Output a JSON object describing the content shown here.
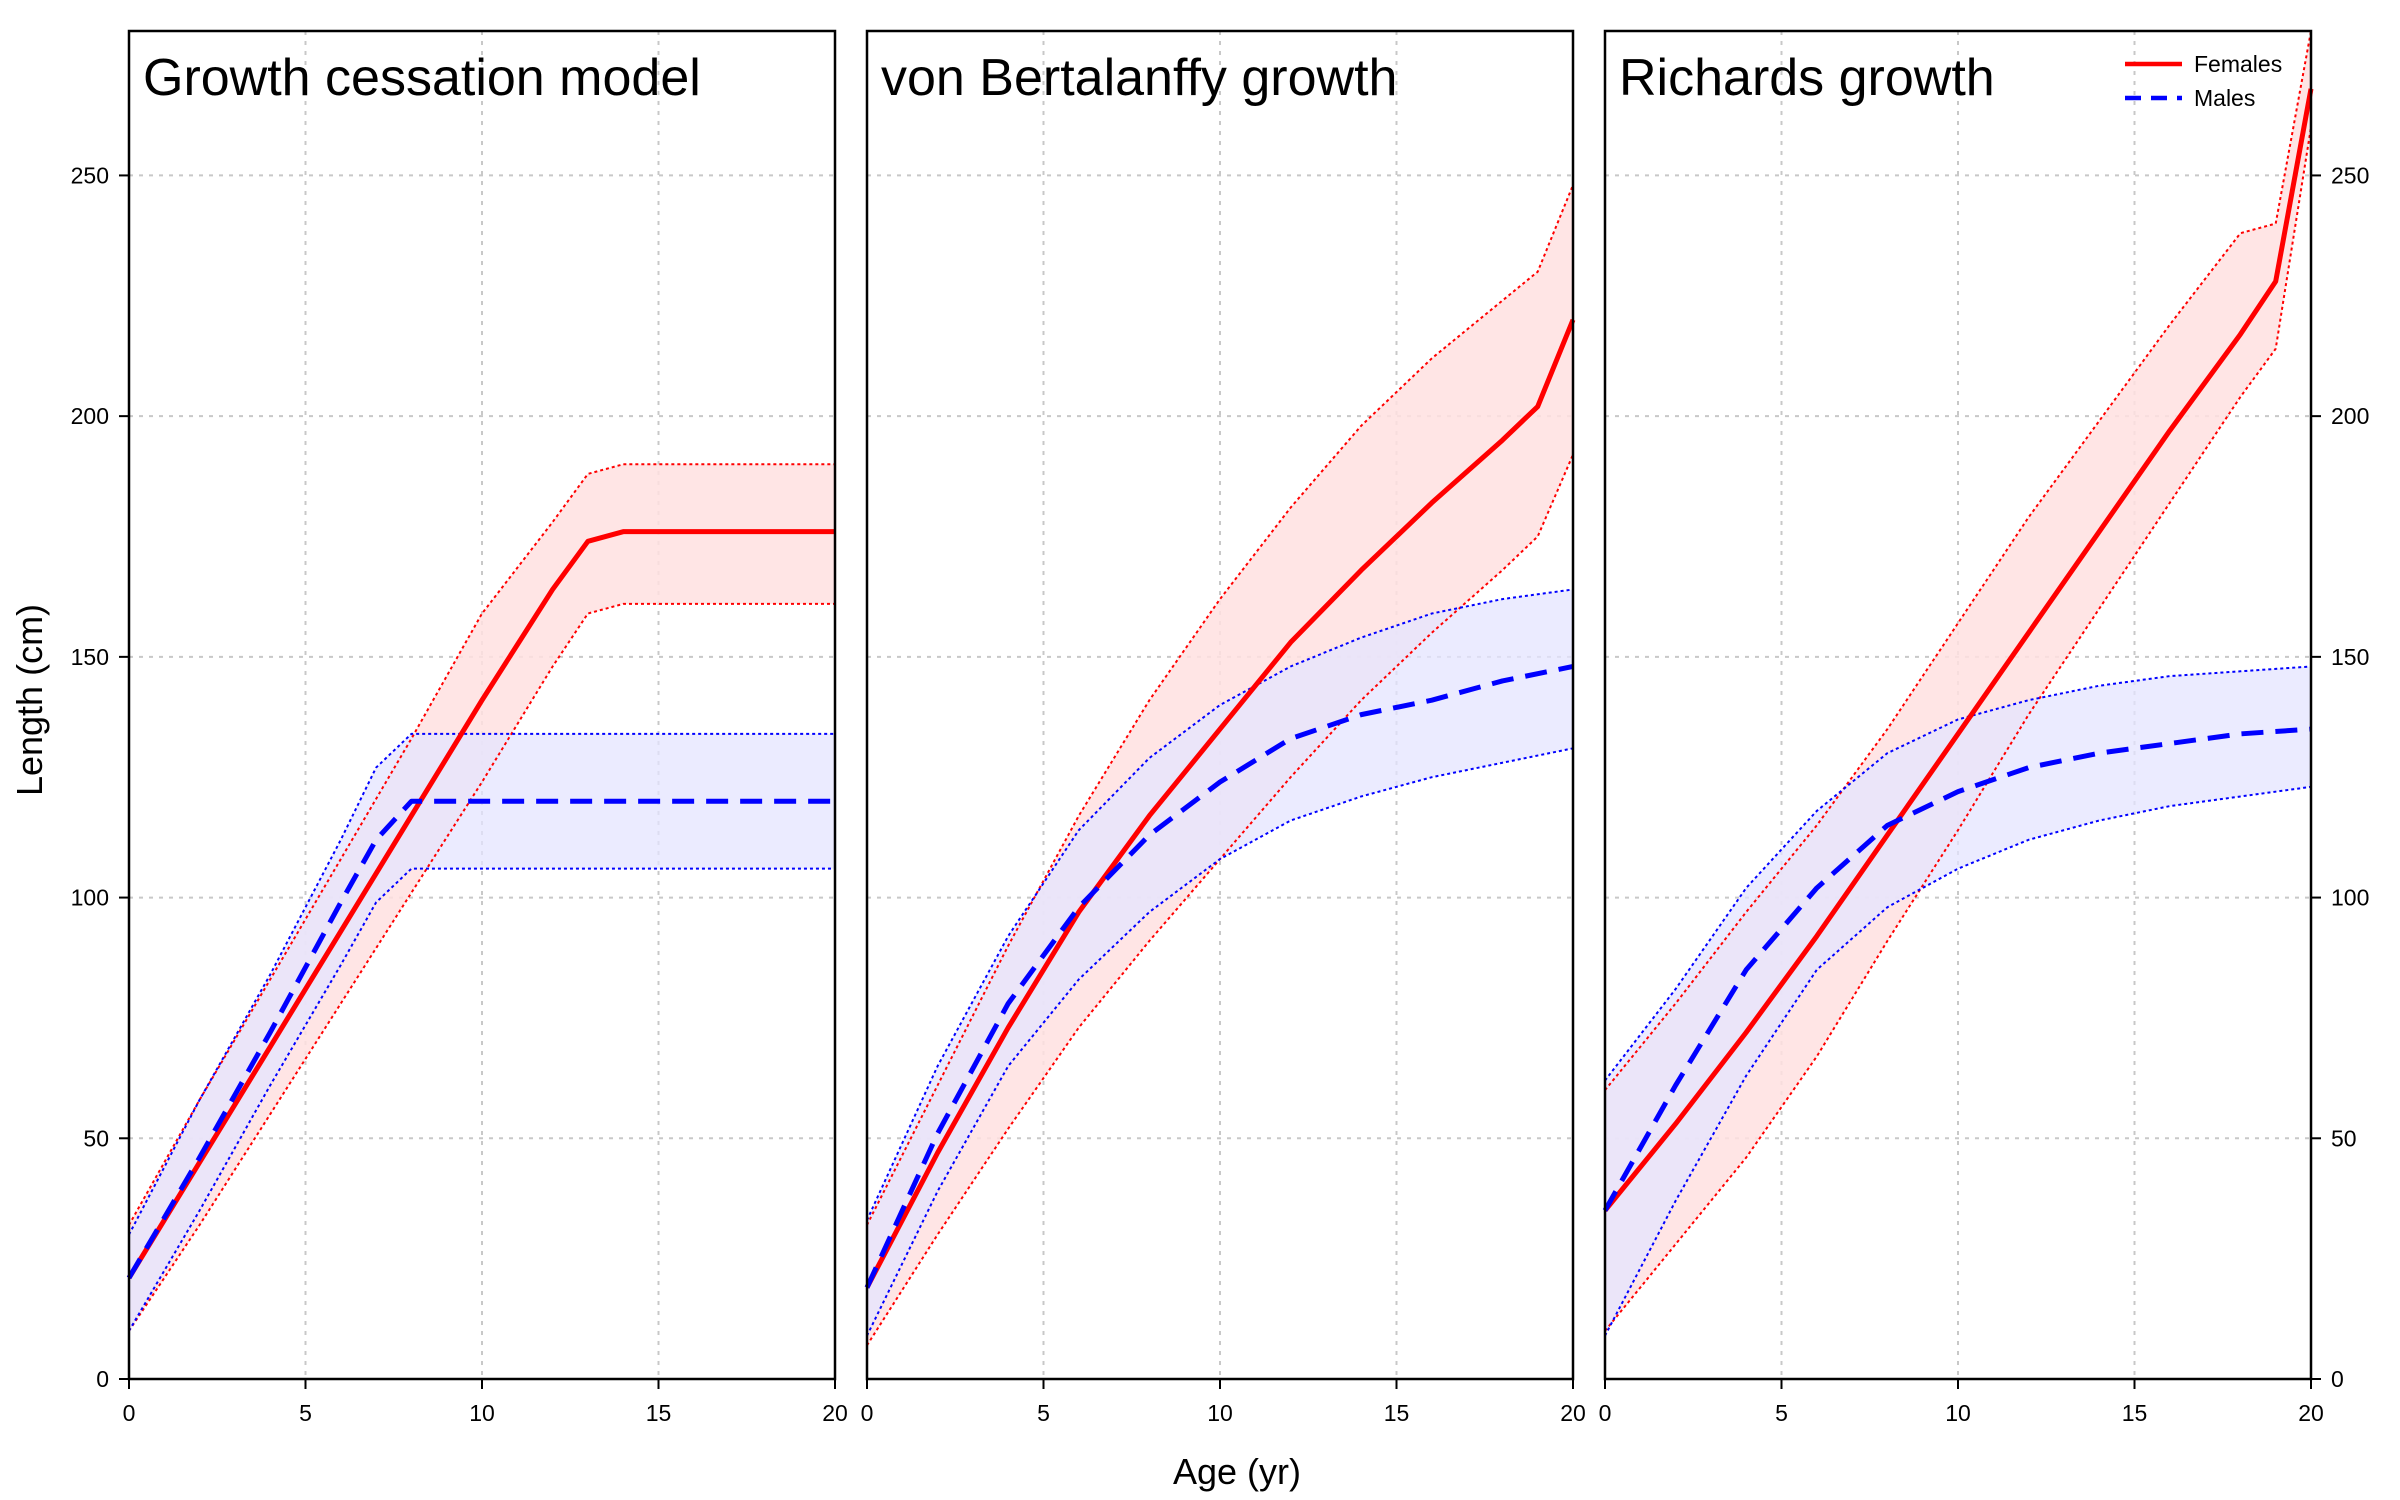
{
  "colors": {
    "females_line": "#ff0000",
    "females_band": "#ffe1e1",
    "males_line": "#0000ff",
    "males_band": "#e4e4ff",
    "grid": "#c8c8c8"
  },
  "chart_data": {
    "type": "line",
    "xlabel": "Age (yr)",
    "ylabel": "Length (cm)",
    "xlim": [
      0,
      20
    ],
    "ylim": [
      0,
      280
    ],
    "x_ticks": [
      "0",
      "5",
      "10",
      "15",
      "20"
    ],
    "y_ticks": [
      "0",
      "50",
      "100",
      "150",
      "200",
      "250"
    ],
    "grid": true,
    "legend": {
      "placement": "top-right of third panel",
      "entries": [
        {
          "label": "Females",
          "style": "solid",
          "color": "#ff0000"
        },
        {
          "label": "Males",
          "style": "dashed",
          "color": "#0000ff"
        }
      ]
    },
    "panels": [
      {
        "title": "Growth cessation model",
        "series": [
          {
            "name": "Females",
            "x": [
              0,
              2,
              4,
              6,
              8,
              10,
              12,
              13,
              14,
              16,
              18,
              20
            ],
            "y": [
              21,
              45,
              69,
              93,
              117,
              141,
              164,
              174,
              176,
              176,
              176,
              176
            ],
            "lower": [
              10,
              32,
              55,
              78,
              101,
              124,
              148,
              159,
              161,
              161,
              161,
              161
            ],
            "upper": [
              32,
              58,
              83,
              108,
              133,
              159,
              178,
              188,
              190,
              190,
              190,
              190
            ]
          },
          {
            "name": "Males",
            "x": [
              0,
              2,
              4,
              6,
              7,
              8,
              10,
              14,
              20
            ],
            "y": [
              21,
              46,
              72,
              99,
              112,
              120,
              120,
              120,
              120
            ],
            "lower": [
              10,
              35,
              61,
              86,
              99,
              106,
              106,
              106,
              106
            ],
            "upper": [
              30,
              58,
              84,
              112,
              127,
              134,
              134,
              134,
              134
            ]
          }
        ]
      },
      {
        "title": "von Bertalanffy growth",
        "series": [
          {
            "name": "Females",
            "x": [
              0,
              2,
              4,
              6,
              8,
              10,
              12,
              14,
              16,
              18,
              19,
              20
            ],
            "y": [
              19,
              47,
              73,
              97,
              117,
              135,
              153,
              168,
              182,
              195,
              202,
              220
            ],
            "lower": [
              7,
              30,
              52,
              73,
              91,
              108,
              125,
              141,
              155,
              168,
              175,
              192
            ],
            "upper": [
              32,
              61,
              90,
              117,
              141,
              162,
              181,
              198,
              212,
              224,
              230,
              248
            ]
          },
          {
            "name": "Males",
            "x": [
              0,
              2,
              4,
              6,
              8,
              10,
              12,
              14,
              16,
              18,
              20
            ],
            "y": [
              19,
              51,
              78,
              98,
              113,
              124,
              133,
              138,
              141,
              145,
              148
            ],
            "lower": [
              9,
              39,
              65,
              83,
              97,
              108,
              116,
              121,
              125,
              128,
              131
            ],
            "upper": [
              33,
              65,
              92,
              114,
              129,
              140,
              148,
              154,
              159,
              162,
              164
            ]
          }
        ]
      },
      {
        "title": "Richards growth",
        "series": [
          {
            "name": "Females",
            "x": [
              0,
              2,
              4,
              6,
              8,
              10,
              12,
              14,
              16,
              18,
              19,
              20
            ],
            "y": [
              35,
              53,
              72,
              92,
              113,
              134,
              155,
              176,
              197,
              217,
              228,
              268
            ],
            "lower": [
              10,
              28,
              46,
              67,
              91,
              114,
              138,
              160,
              182,
              204,
              214,
              260
            ],
            "upper": [
              60,
              78,
              97,
              115,
              135,
              157,
              179,
              199,
              219,
              238,
              240,
              280
            ]
          },
          {
            "name": "Males",
            "x": [
              0,
              2,
              4,
              6,
              8,
              10,
              12,
              14,
              16,
              18,
              20
            ],
            "y": [
              35,
              61,
              85,
              102,
              115,
              122,
              127,
              130,
              132,
              134,
              135
            ],
            "lower": [
              9,
              37,
              63,
              85,
              98,
              106,
              112,
              116,
              119,
              121,
              123
            ],
            "upper": [
              62,
              81,
              102,
              118,
              130,
              137,
              141,
              144,
              146,
              147,
              148
            ]
          }
        ]
      }
    ]
  }
}
